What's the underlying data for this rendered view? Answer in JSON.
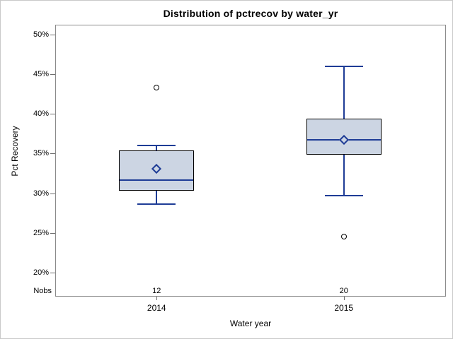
{
  "chart_data": {
    "type": "boxplot",
    "title": "Distribution of pctrecov by water_yr",
    "xlabel": "Water year",
    "ylabel": "Pct Recovery",
    "nobs_label": "Nobs",
    "ylim": [
      17.1,
      51.2
    ],
    "grid": "off",
    "legend": "none",
    "yticks": [
      {
        "value": 50,
        "label": "50%"
      },
      {
        "value": 45,
        "label": "45%"
      },
      {
        "value": 40,
        "label": "40%"
      },
      {
        "value": 35,
        "label": "35%"
      },
      {
        "value": 30,
        "label": "30%"
      },
      {
        "value": 25,
        "label": "25%"
      },
      {
        "value": 20,
        "label": "20%"
      }
    ],
    "groups": [
      {
        "category": "2014",
        "nobs": "12",
        "whisker_low": 28.6,
        "q1": 30.3,
        "median": 31.7,
        "mean": 33.1,
        "q3": 35.4,
        "whisker_high": 36.0,
        "outliers": [
          43.3
        ]
      },
      {
        "category": "2015",
        "nobs": "20",
        "whisker_low": 29.7,
        "q1": 34.9,
        "median": 36.7,
        "mean": 36.7,
        "q3": 39.4,
        "whisker_high": 46.0,
        "outliers": [
          24.6
        ]
      }
    ],
    "colors": {
      "box_fill": "#ccd5e3",
      "box_line_blue": "#1e3c96",
      "box_border": "#000000",
      "outlier_stroke": "#000000",
      "frame": "#8a8a8a",
      "tick": "#6e6e6e",
      "figure_border": "#c9c9c9",
      "text": "#000000"
    }
  }
}
